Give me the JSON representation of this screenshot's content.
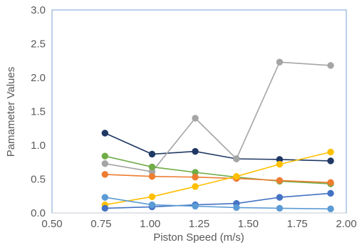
{
  "chart_data": {
    "type": "line",
    "title": "",
    "xlabel": "Piston Speed (m/s)",
    "ylabel": "Pamameter Values",
    "xlim": [
      0.5,
      2.0
    ],
    "ylim": [
      0.0,
      3.0
    ],
    "x_ticks": [
      "0.50",
      "0.75",
      "1.00",
      "1.25",
      "1.50",
      "1.75",
      "2.00"
    ],
    "y_ticks": [
      "0.0",
      "0.5",
      "1.0",
      "1.5",
      "2.0",
      "2.5",
      "3.0"
    ],
    "grid": false,
    "legend": "none",
    "x": [
      0.77,
      1.01,
      1.23,
      1.44,
      1.66,
      1.92
    ],
    "series": [
      {
        "color": "#203864",
        "values": [
          1.18,
          0.87,
          0.91,
          0.8,
          0.79,
          0.77
        ]
      },
      {
        "color": "#A5A5A5",
        "values": [
          0.73,
          0.61,
          1.4,
          0.8,
          2.23,
          2.18
        ]
      },
      {
        "color": "#70AD47",
        "values": [
          0.84,
          0.68,
          0.6,
          0.53,
          0.47,
          0.43
        ]
      },
      {
        "color": "#ED7D31",
        "values": [
          0.57,
          0.54,
          0.53,
          0.51,
          0.48,
          0.45
        ]
      },
      {
        "color": "#FFC000",
        "values": [
          0.12,
          0.24,
          0.39,
          0.54,
          0.72,
          0.9
        ]
      },
      {
        "color": "#4472C4",
        "values": [
          0.07,
          0.09,
          0.12,
          0.14,
          0.23,
          0.29
        ]
      },
      {
        "color": "#5B9BD5",
        "values": [
          0.23,
          0.12,
          0.1,
          0.08,
          0.07,
          0.06
        ]
      }
    ]
  }
}
